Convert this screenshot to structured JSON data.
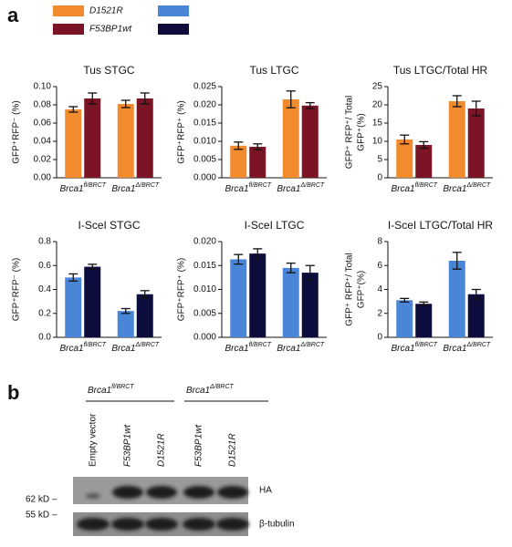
{
  "panels": [
    "a",
    "b"
  ],
  "legend": [
    {
      "label": "D1521R",
      "colors": [
        "#f28a2e",
        "#4a86d8"
      ]
    },
    {
      "label": "F53BP1wt",
      "colors": [
        "#7b1424",
        "#0d0d3d"
      ]
    }
  ],
  "chart_data": [
    {
      "type": "bar",
      "title": "Tus STGC",
      "ylabel": [
        "GFP⁺RFP⁻ (%)"
      ],
      "categories": [
        [
          "Brca1",
          "fl/BRCT"
        ],
        [
          "Brca1",
          "Δ/BRCT"
        ]
      ],
      "series": [
        {
          "color": "#f28a2e",
          "values": [
            0.075,
            0.081
          ],
          "errors": [
            0.003,
            0.004
          ]
        },
        {
          "color": "#7b1424",
          "values": [
            0.087,
            0.087
          ],
          "errors": [
            0.006,
            0.006
          ]
        }
      ],
      "ylim": [
        0,
        0.1
      ],
      "yticks": [
        {
          "value": 0,
          "label": "0.00"
        },
        0.02,
        0.04,
        0.06,
        0.08,
        {
          "value": 0.1,
          "label": "0.10"
        }
      ]
    },
    {
      "type": "bar",
      "title": "Tus LTGC",
      "ylabel": [
        "GFP⁺RFP⁺ (%)"
      ],
      "categories": [
        [
          "Brca1",
          "fl/BRCT"
        ],
        [
          "Brca1",
          "Δ/BRCT"
        ]
      ],
      "series": [
        {
          "color": "#f28a2e",
          "values": [
            0.0088,
            0.0215
          ],
          "errors": [
            0.001,
            0.0023
          ]
        },
        {
          "color": "#7b1424",
          "values": [
            0.0085,
            0.0198
          ],
          "errors": [
            0.0008,
            0.0008
          ]
        }
      ],
      "ylim": [
        0,
        0.025
      ],
      "yticks": [
        {
          "value": 0,
          "label": "0.000"
        },
        0.005,
        {
          "value": 0.01,
          "label": "0.010"
        },
        0.015,
        {
          "value": 0.02,
          "label": "0.020"
        },
        0.025
      ]
    },
    {
      "type": "bar",
      "title": "Tus LTGC/Total HR",
      "ylabel": [
        "GFP⁺ RFP⁺/ Total",
        "GFP⁺(%)"
      ],
      "categories": [
        [
          "Brca1",
          "fl/BRCT"
        ],
        [
          "Brca1",
          "Δ/BRCT"
        ]
      ],
      "series": [
        {
          "color": "#f28a2e",
          "values": [
            10.5,
            21
          ],
          "errors": [
            1.2,
            1.5
          ]
        },
        {
          "color": "#7b1424",
          "values": [
            9,
            19
          ],
          "errors": [
            0.9,
            2
          ]
        }
      ],
      "ylim": [
        0,
        25
      ],
      "yticks": [
        0,
        5,
        10,
        15,
        20,
        25
      ]
    },
    {
      "type": "bar",
      "title": "I-SceI STGC",
      "ylabel": [
        "GFP⁺RFP⁻ (%)"
      ],
      "categories": [
        [
          "Brca1",
          "fl/BRCT"
        ],
        [
          "Brca1",
          "Δ/BRCT"
        ]
      ],
      "series": [
        {
          "color": "#4a86d8",
          "values": [
            0.5,
            0.22
          ],
          "errors": [
            0.03,
            0.02
          ]
        },
        {
          "color": "#0d0d3d",
          "values": [
            0.59,
            0.36
          ],
          "errors": [
            0.02,
            0.03
          ]
        }
      ],
      "ylim": [
        0,
        0.8
      ],
      "yticks": [
        {
          "value": 0,
          "label": "0.0"
        },
        0.2,
        0.4,
        0.6,
        0.8
      ]
    },
    {
      "type": "bar",
      "title": "I-SceI LTGC",
      "ylabel": [
        "GFP⁺RFP⁺ (%)"
      ],
      "categories": [
        [
          "Brca1",
          "fl/BRCT"
        ],
        [
          "Brca1",
          "Δ/BRCT"
        ]
      ],
      "series": [
        {
          "color": "#4a86d8",
          "values": [
            0.0163,
            0.0145
          ],
          "errors": [
            0.001,
            0.001
          ]
        },
        {
          "color": "#0d0d3d",
          "values": [
            0.0175,
            0.0135
          ],
          "errors": [
            0.001,
            0.0015
          ]
        }
      ],
      "ylim": [
        0,
        0.02
      ],
      "yticks": [
        {
          "value": 0,
          "label": "0.000"
        },
        0.005,
        {
          "value": 0.01,
          "label": "0.010"
        },
        0.015,
        {
          "value": 0.02,
          "label": "0.020"
        }
      ]
    },
    {
      "type": "bar",
      "title": "I-SceI LTGC/Total HR",
      "ylabel": [
        "GFP⁺ RFP⁺/ Total",
        "GFP⁺(%)"
      ],
      "categories": [
        [
          "Brca1",
          "fl/BRCT"
        ],
        [
          "Brca1",
          "Δ/BRCT"
        ]
      ],
      "series": [
        {
          "color": "#4a86d8",
          "values": [
            3.1,
            6.4
          ],
          "errors": [
            0.15,
            0.7
          ]
        },
        {
          "color": "#0d0d3d",
          "values": [
            2.8,
            3.6
          ],
          "errors": [
            0.15,
            0.4
          ]
        }
      ],
      "ylim": [
        0,
        8
      ],
      "yticks": [
        0,
        2,
        4,
        6,
        8
      ]
    }
  ],
  "blot": {
    "groups": [
      [
        "Brca1",
        "fl/BRCT"
      ],
      [
        "Brca1",
        "Δ/BRCT"
      ]
    ],
    "lanes": [
      "Empty vector",
      "F53BP1wt",
      "D1521R",
      "F53BP1wt",
      "D1521R"
    ],
    "bands": [
      "HA",
      "β-tubulin"
    ],
    "markers": [
      "62 kD –",
      "55 kD –"
    ]
  }
}
